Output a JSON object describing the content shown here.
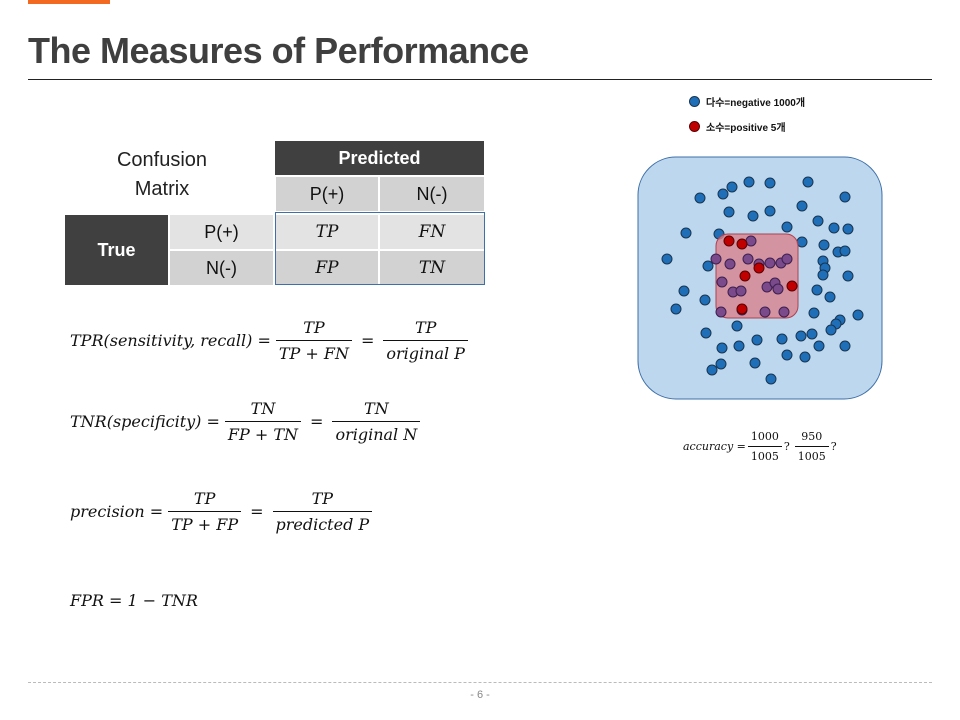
{
  "slide": {
    "title": "The Measures of Performance",
    "page_number": "- 6 -",
    "accent_color": "#f26a21"
  },
  "matrix": {
    "label_line1": "Confusion",
    "label_line2": "Matrix",
    "predicted": "Predicted",
    "true": "True",
    "col_pos": "P(+)",
    "col_neg": "N(-)",
    "row_pos": "P(+)",
    "row_neg": "N(-)",
    "tp": "TP",
    "fn": "FN",
    "fp": "FP",
    "tn": "TN"
  },
  "formulas": {
    "tpr_lhs": "TPR(sensitivity, recall) =",
    "tpr_num": "TP",
    "tpr_den": "TP + FN",
    "tpr_num2": "TP",
    "tpr_den2": "original P",
    "tnr_lhs": "TNR(specificity) =",
    "tnr_num": "TN",
    "tnr_den": "FP + TN",
    "tnr_num2": "TN",
    "tnr_den2": "original N",
    "prec_lhs": "precision =",
    "prec_num": "TP",
    "prec_den": "TP + FP",
    "prec_num2": "TP",
    "prec_den2": "predicted P",
    "fpr": "FPR = 1 − TNR"
  },
  "legend": {
    "negative": "다수=negative   1000개",
    "positive": "소수=positive        5개",
    "negative_color": "#1f6fb8",
    "positive_color": "#c00000"
  },
  "accuracy": {
    "label": "accuracy =",
    "num1": "1000",
    "den1": "1005",
    "num2": "950",
    "den2": "1005",
    "q": "?"
  }
}
